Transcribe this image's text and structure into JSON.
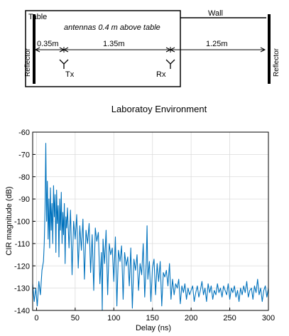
{
  "diagram": {
    "table_label": "Table",
    "wall_label": "Wall",
    "antenna_note": "antennas 0.4 m above table",
    "left_reflector": "Reflector",
    "right_reflector": "Reflector",
    "dist_reflector_tx": "0.35m",
    "dist_tx_rx": "1.35m",
    "dist_rx_wall": "1.25m",
    "tx_label": "Tx",
    "rx_label": "Rx"
  },
  "chart_data": {
    "type": "line",
    "title": "Laboratoy Environment",
    "xlabel": "Delay (ns)",
    "ylabel": "CIR magnitude (dB)",
    "xlim": [
      -5,
      300
    ],
    "ylim": [
      -140,
      -60
    ],
    "xticks": [
      "0",
      "50",
      "100",
      "150",
      "200",
      "250",
      "300"
    ],
    "yticks": [
      "-60",
      "-70",
      "-80",
      "-90",
      "-100",
      "-110",
      "-120",
      "-130",
      "-140"
    ],
    "grid": true,
    "color": "#0072BD",
    "series": [
      {
        "x": [
          -5,
          -3,
          -1,
          1,
          3,
          5,
          7,
          9,
          10,
          11,
          12,
          13,
          14,
          15,
          16,
          17,
          18,
          19,
          20,
          21,
          22,
          23,
          24,
          25,
          26,
          27,
          28,
          29,
          30,
          31,
          32,
          33,
          34,
          35,
          36,
          37,
          38,
          39,
          40,
          42,
          44,
          46,
          48,
          50,
          52,
          54,
          56,
          58,
          60,
          62,
          64,
          66,
          68,
          70,
          72,
          74,
          76,
          78,
          80,
          82,
          84,
          85,
          86,
          88,
          90,
          92,
          94,
          96,
          98,
          100,
          102,
          104,
          106,
          108,
          110,
          112,
          114,
          116,
          118,
          120,
          122,
          124,
          126,
          128,
          130,
          132,
          134,
          136,
          138,
          140,
          142,
          143,
          144,
          146,
          148,
          150,
          152,
          154,
          156,
          158,
          160,
          162,
          164,
          166,
          168,
          170,
          172,
          174,
          176,
          178,
          180,
          182,
          184,
          186,
          188,
          190,
          192,
          194,
          196,
          198,
          200,
          202,
          204,
          206,
          208,
          210,
          212,
          214,
          216,
          218,
          220,
          222,
          224,
          226,
          228,
          230,
          232,
          234,
          236,
          238,
          240,
          242,
          244,
          246,
          248,
          250,
          252,
          254,
          256,
          258,
          260,
          262,
          264,
          266,
          268,
          270,
          272,
          274,
          276,
          278,
          280,
          282,
          284,
          286,
          288,
          290,
          292,
          294,
          296,
          298,
          300
        ],
        "y": [
          -128,
          -136,
          -130,
          -138,
          -127,
          -133,
          -122,
          -118,
          -110,
          -95,
          -65,
          -100,
          -82,
          -108,
          -90,
          -112,
          -85,
          -104,
          -92,
          -110,
          -84,
          -98,
          -88,
          -114,
          -86,
          -101,
          -93,
          -116,
          -90,
          -104,
          -87,
          -110,
          -96,
          -106,
          -92,
          -119,
          -98,
          -103,
          -94,
          -112,
          -95,
          -124,
          -100,
          -108,
          -97,
          -121,
          -102,
          -113,
          -99,
          -126,
          -104,
          -110,
          -101,
          -123,
          -106,
          -131,
          -103,
          -109,
          -105,
          -128,
          -114,
          -140,
          -108,
          -119,
          -104,
          -133,
          -110,
          -115,
          -112,
          -127,
          -107,
          -138,
          -113,
          -118,
          -111,
          -135,
          -114,
          -120,
          -116,
          -129,
          -112,
          -139,
          -117,
          -122,
          -115,
          -131,
          -119,
          -124,
          -110,
          -134,
          -118,
          -102,
          -126,
          -118,
          -136,
          -121,
          -117,
          -133,
          -119,
          -127,
          -118,
          -138,
          -123,
          -125,
          -122,
          -129,
          -119,
          -135,
          -126,
          -133,
          -128,
          -130,
          -126,
          -137,
          -129,
          -132,
          -128,
          -135,
          -130,
          -133,
          -131,
          -129,
          -136,
          -132,
          -129,
          -134,
          -131,
          -127,
          -133,
          -130,
          -136,
          -128,
          -132,
          -129,
          -135,
          -131,
          -133,
          -128,
          -132,
          -130,
          -134,
          -129,
          -131,
          -133,
          -128,
          -135,
          -130,
          -132,
          -129,
          -134,
          -131,
          -136,
          -130,
          -133,
          -129,
          -132,
          -127,
          -134,
          -131,
          -130,
          -135,
          -129,
          -132,
          -126,
          -133,
          -130,
          -136,
          -131,
          -129,
          -134,
          -130
        ]
      }
    ]
  }
}
